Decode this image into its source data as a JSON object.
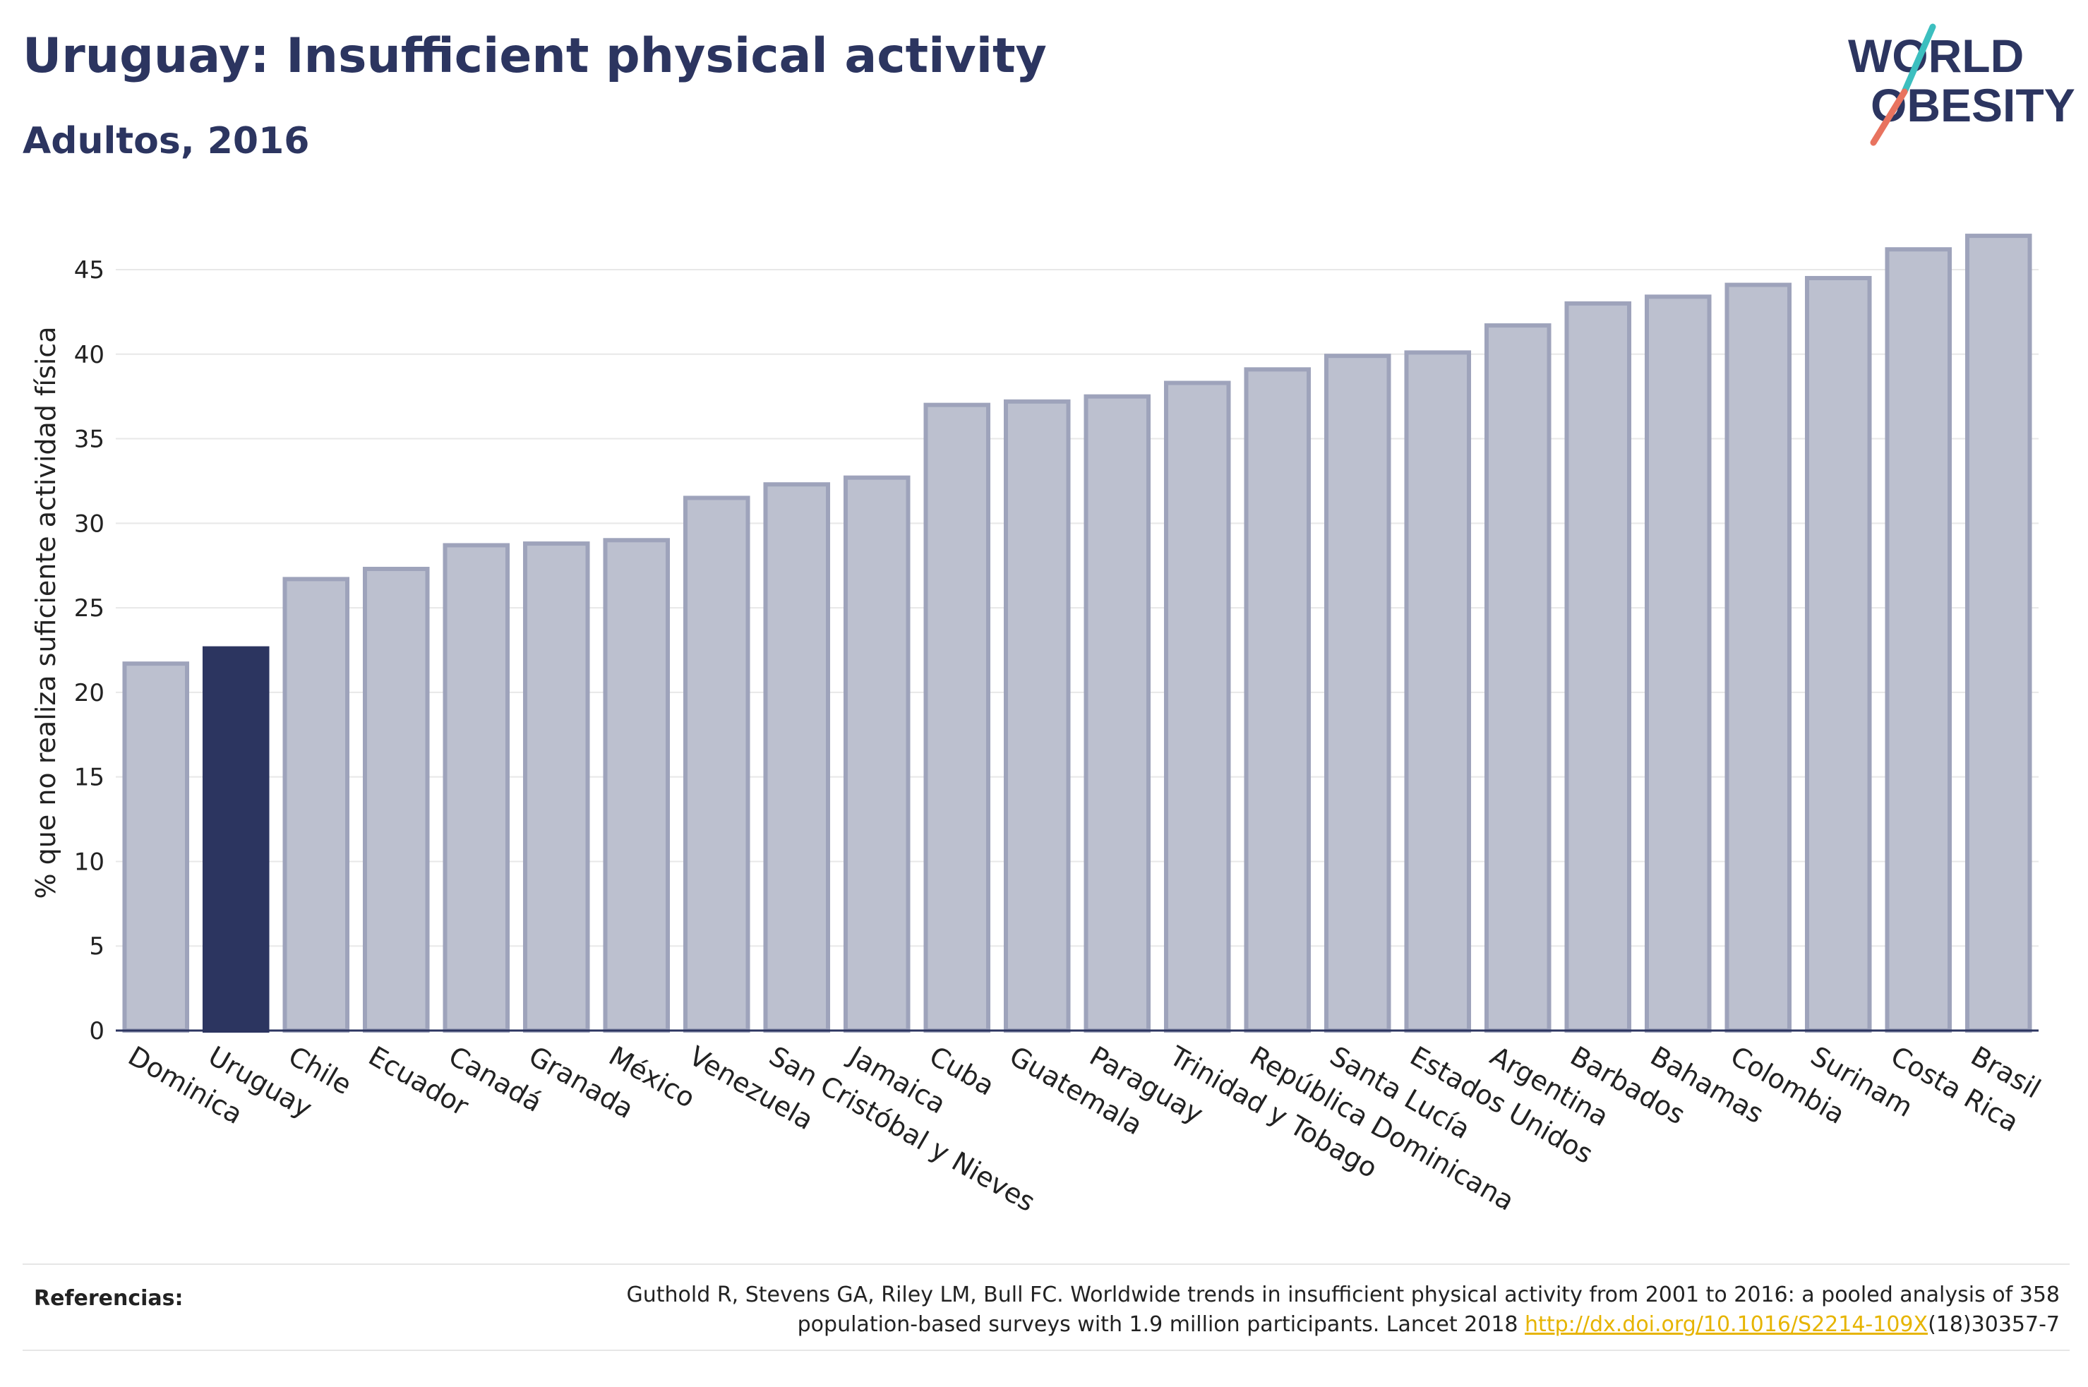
{
  "title": "Uruguay: Insufficient physical activity",
  "subtitle": "Adultos, 2016",
  "logo": {
    "line1": "WORLD",
    "line2": "OBESITY",
    "icon": "world-obesity-logo"
  },
  "colors": {
    "highlight": "#2c3560",
    "bar": "#bcc0cf",
    "bar_stroke": "#9ea3bb",
    "accent_teal": "#3cbfbf",
    "accent_coral": "#e8735f",
    "link": "#e6b400"
  },
  "chart_data": {
    "type": "bar",
    "ylabel": "% que no realiza suficiente actividad física",
    "xlabel": "",
    "ylim": [
      0,
      47
    ],
    "yticks": [
      0,
      5,
      10,
      15,
      20,
      25,
      30,
      35,
      40,
      45
    ],
    "grid": true,
    "highlight": "Uruguay",
    "categories": [
      "Dominica",
      "Uruguay",
      "Chile",
      "Ecuador",
      "Canadá",
      "Granada",
      "México",
      "Venezuela",
      "San Cristóbal y Nieves",
      "Jamaica",
      "Cuba",
      "Guatemala",
      "Paraguay",
      "Trinidad y Tobago",
      "República Dominicana",
      "Santa Lucía",
      "Estados Unidos",
      "Argentina",
      "Barbados",
      "Bahamas",
      "Colombia",
      "Surinam",
      "Costa Rica",
      "Brasil"
    ],
    "values": [
      21.7,
      22.6,
      26.7,
      27.3,
      28.7,
      28.8,
      29.0,
      31.5,
      32.3,
      32.7,
      37.0,
      37.2,
      37.5,
      38.3,
      39.1,
      39.9,
      40.1,
      41.7,
      43.0,
      43.4,
      44.1,
      44.5,
      46.2,
      47.0
    ]
  },
  "references": {
    "label": "Referencias:",
    "text_line1": "Guthold R, Stevens GA, Riley LM, Bull FC. Worldwide trends in insufficient physical activity from 2001 to 2016: a pooled analysis of 358",
    "text_line2_pre": "population-based surveys with 1.9 million participants. Lancet 2018 ",
    "link": "http://dx.doi.org/10.1016/S2214-109X",
    "text_line2_post": "(18)30357-7"
  }
}
